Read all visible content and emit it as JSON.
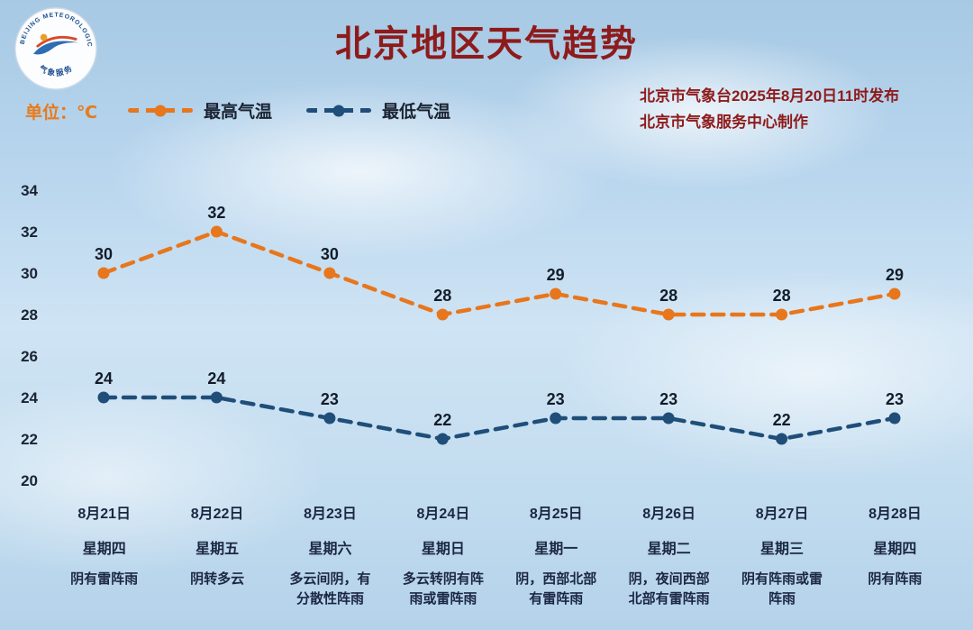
{
  "header": {
    "title": "北京地区天气趋势",
    "unit_label": "单位：℃",
    "publisher_line1": "北京市气象台2025年8月20日11时发布",
    "publisher_line2": "北京市气象服务中心制作",
    "logo": {
      "arc_text": "BEIJING METEOROLOGICAL SERVICE",
      "bottom_text": "气象服务"
    }
  },
  "colors": {
    "title": "#8e1b1b",
    "publisher": "#8e1b1b",
    "unit": "#e87a1a",
    "max_line": "#e8761c",
    "min_line": "#1f4e79",
    "axis_text": "#1b2742"
  },
  "chart_data": {
    "type": "line",
    "title": "北京地区天气趋势",
    "unit": "℃",
    "ylim": [
      20,
      34
    ],
    "yticks": [
      34,
      32,
      30,
      28,
      26,
      24,
      22,
      20
    ],
    "grid": false,
    "legend_position": "top",
    "line_style": "dashed",
    "categories": [
      "8月21日",
      "8月22日",
      "8月23日",
      "8月24日",
      "8月25日",
      "8月26日",
      "8月27日",
      "8月28日"
    ],
    "series": [
      {
        "name": "最高气温",
        "color": "#e8761c",
        "values": [
          30,
          32,
          30,
          28,
          29,
          28,
          28,
          29
        ]
      },
      {
        "name": "最低气温",
        "color": "#1f4e79",
        "values": [
          24,
          24,
          23,
          22,
          23,
          23,
          22,
          23
        ]
      }
    ],
    "x_labels": [
      {
        "date": "8月21日",
        "weekday": "星期四",
        "weather": "阴有雷阵雨"
      },
      {
        "date": "8月22日",
        "weekday": "星期五",
        "weather": "阴转多云"
      },
      {
        "date": "8月23日",
        "weekday": "星期六",
        "weather": "多云间阴，有分散性阵雨"
      },
      {
        "date": "8月24日",
        "weekday": "星期日",
        "weather": "多云转阴有阵雨或雷阵雨"
      },
      {
        "date": "8月25日",
        "weekday": "星期一",
        "weather": "阴，西部北部有雷阵雨"
      },
      {
        "date": "8月26日",
        "weekday": "星期二",
        "weather": "阴，夜间西部北部有雷阵雨"
      },
      {
        "date": "8月27日",
        "weekday": "星期三",
        "weather": "阴有阵雨或雷阵雨"
      },
      {
        "date": "8月28日",
        "weekday": "星期四",
        "weather": "阴有阵雨"
      }
    ]
  }
}
